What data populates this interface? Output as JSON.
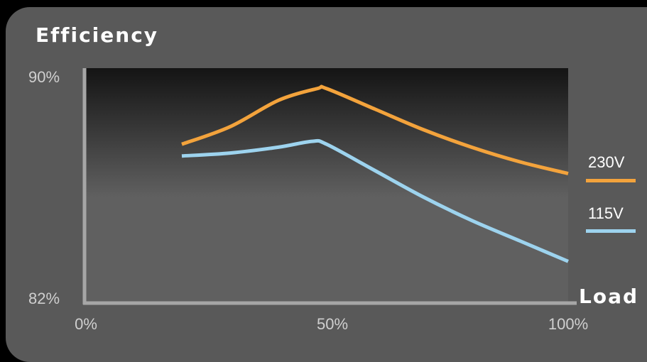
{
  "colors": {
    "page_background": "#000000",
    "panel": "#595959",
    "plot_top": "#141414",
    "plot_bottom": "#606060",
    "axis": "#a6a6a6",
    "series_230": "#f3a33c",
    "series_115": "#9dd3ee"
  },
  "chart_data": {
    "type": "line",
    "title": "Efficiency",
    "xlabel": "Load",
    "ylabel": "",
    "xlim": [
      0,
      100
    ],
    "ylim": [
      82,
      90
    ],
    "x_ticks": [
      "0%",
      "50%",
      "100%"
    ],
    "y_ticks": [
      "90%",
      "82%"
    ],
    "grid": false,
    "legend": "right",
    "series": [
      {
        "name": "230V",
        "color": "#f3a33c",
        "x": [
          20,
          30,
          40,
          48,
          50,
          60,
          70,
          80,
          90,
          100
        ],
        "values": [
          87.4,
          88.0,
          88.9,
          89.3,
          89.3,
          88.6,
          87.9,
          87.3,
          86.8,
          86.4
        ]
      },
      {
        "name": "115V",
        "color": "#9dd3ee",
        "x": [
          20,
          30,
          40,
          47,
          50,
          60,
          70,
          80,
          90,
          100
        ],
        "values": [
          87.0,
          87.1,
          87.3,
          87.5,
          87.4,
          86.5,
          85.6,
          84.8,
          84.1,
          83.4
        ]
      }
    ]
  }
}
